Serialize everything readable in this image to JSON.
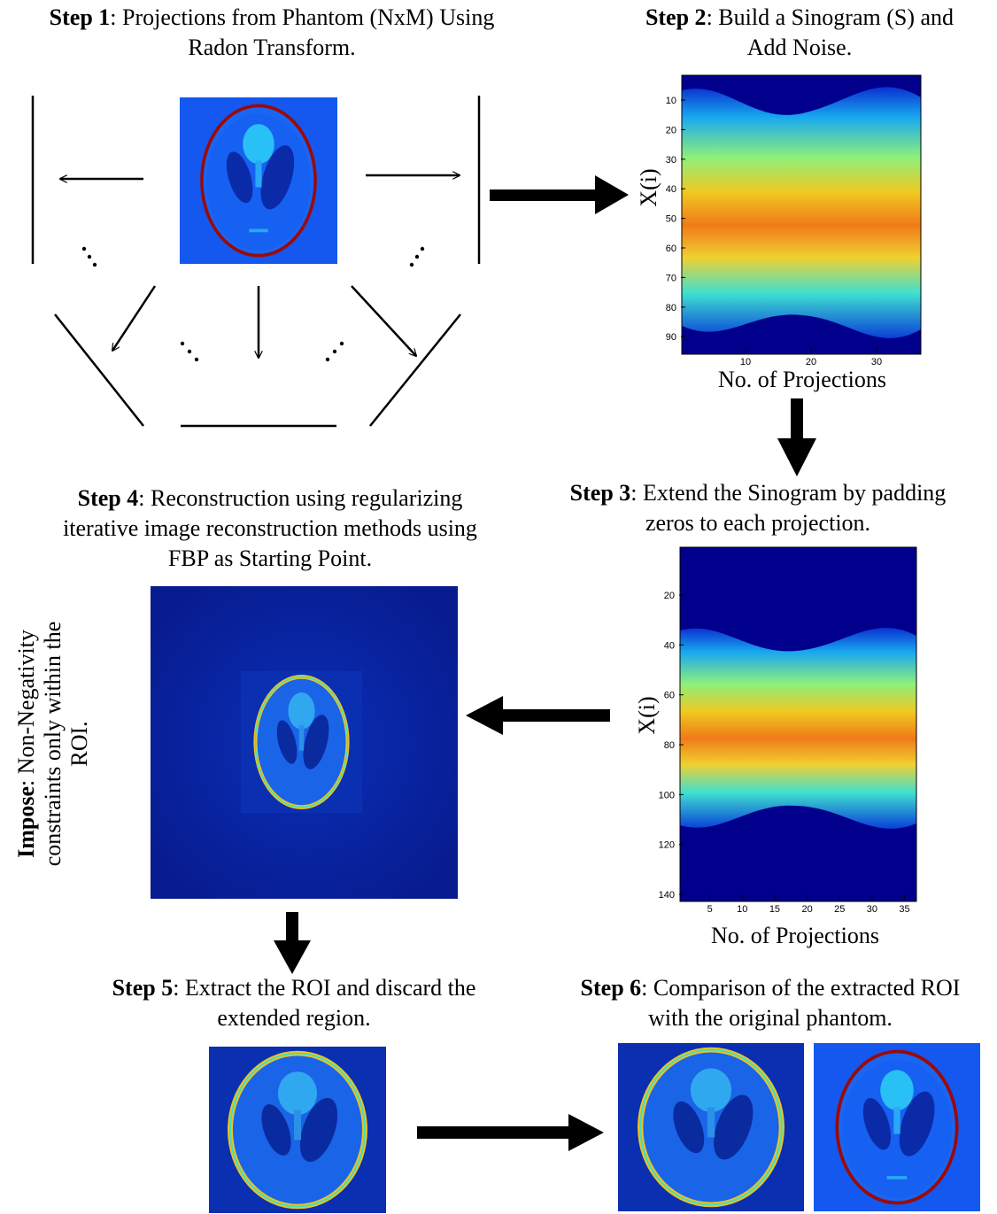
{
  "steps": [
    {
      "label": "Step 1",
      "lines": [
        ": Projections from Phantom (NxM) Using",
        "Radon Transform."
      ]
    },
    {
      "label": "Step 2",
      "lines": [
        ": Build a Sinogram (S) and",
        "Add Noise."
      ]
    },
    {
      "label": "Step 3",
      "lines": [
        ": Extend the Sinogram by padding",
        "zeros to each projection."
      ]
    },
    {
      "label": "Step 4",
      "lines": [
        ": Reconstruction using regularizing",
        "iterative image reconstruction methods using",
        "FBP as Starting Point."
      ]
    },
    {
      "label": "Step 5",
      "lines": [
        ": Extract the ROI and discard the",
        "extended region."
      ]
    },
    {
      "label": "Step 6",
      "lines": [
        ": Comparison of the extracted ROI",
        "with the original phantom."
      ]
    }
  ],
  "impose": {
    "label": "Impose",
    "lines": [
      ":  Non-Negativity",
      "constraints only within the",
      "ROI."
    ]
  },
  "sinogram1": {
    "ylabel": "X(i)",
    "xlabel": "No. of Projections",
    "yticks": [
      10,
      20,
      30,
      40,
      50,
      60,
      70,
      80,
      90
    ],
    "xticks": [
      10,
      20,
      30
    ]
  },
  "sinogram2": {
    "ylabel": "X(i)",
    "xlabel": "No. of Projections",
    "yticks": [
      20,
      40,
      60,
      80,
      100,
      120,
      140
    ],
    "xticks": [
      5,
      10,
      15,
      20,
      25,
      30,
      35
    ]
  }
}
